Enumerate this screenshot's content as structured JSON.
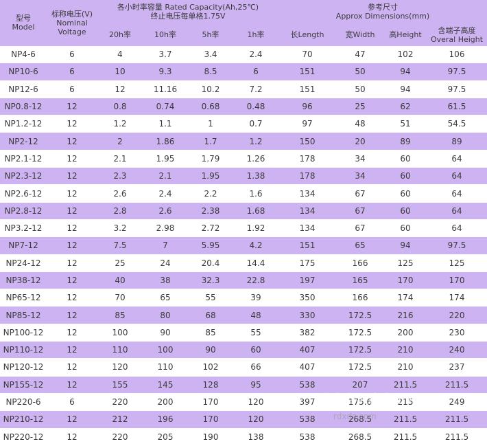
{
  "header": {
    "model_cn": "型号",
    "model_en": "Model",
    "voltage_cn": "标称电压(V)",
    "voltage_en_1": "Nominal",
    "voltage_en_2": "Voltage",
    "capacity_title_1": "各小时率容量 Rated Capacity(Ah,25℃)",
    "capacity_title_2": "终止电压每单格1.75V",
    "rate_20h": "20h率",
    "rate_10h": "10h率",
    "rate_5h": "5h率",
    "rate_1h": "1h率",
    "dims_cn": "参考尺寸",
    "dims_en": "Approx Dimensions(mm)",
    "length": "长Length",
    "width": "宽Width",
    "height": "高Height",
    "overall_cn": "含端子高度",
    "overall_en": "Overal Height"
  },
  "rows": [
    [
      "NP4-6",
      "6",
      "4",
      "3.7",
      "3.4",
      "2.4",
      "70",
      "47",
      "102",
      "106"
    ],
    [
      "NP10-6",
      "6",
      "10",
      "9.3",
      "8.5",
      "6",
      "151",
      "50",
      "94",
      "97.5"
    ],
    [
      "NP12-6",
      "6",
      "12",
      "11.16",
      "10.2",
      "7.2",
      "151",
      "50",
      "94",
      "97.5"
    ],
    [
      "NP0.8-12",
      "12",
      "0.8",
      "0.74",
      "0.68",
      "0.48",
      "96",
      "25",
      "62",
      "61.5"
    ],
    [
      "NP1.2-12",
      "12",
      "1.2",
      "1.1",
      "1",
      "0.7",
      "97",
      "48",
      "51",
      "54.5"
    ],
    [
      "NP2-12",
      "12",
      "2",
      "1.86",
      "1.7",
      "1.2",
      "150",
      "20",
      "89",
      "89"
    ],
    [
      "NP2.1-12",
      "12",
      "2.1",
      "1.95",
      "1.79",
      "1.26",
      "178",
      "34",
      "60",
      "64"
    ],
    [
      "NP2.3-12",
      "12",
      "2.3",
      "2.1",
      "1.95",
      "1.38",
      "178",
      "34",
      "60",
      "64"
    ],
    [
      "NP2.6-12",
      "12",
      "2.6",
      "2.4",
      "2.2",
      "1.6",
      "134",
      "67",
      "60",
      "64"
    ],
    [
      "NP2.8-12",
      "12",
      "2.8",
      "2.6",
      "2.38",
      "1.68",
      "134",
      "67",
      "60",
      "64"
    ],
    [
      "NP3.2-12",
      "12",
      "3.2",
      "2.98",
      "2.72",
      "1.92",
      "134",
      "67",
      "60",
      "64"
    ],
    [
      "NP7-12",
      "12",
      "7.5",
      "7",
      "5.95",
      "4.2",
      "151",
      "65",
      "94",
      "97.5"
    ],
    [
      "NP24-12",
      "12",
      "25",
      "24",
      "20.4",
      "14.4",
      "175",
      "166",
      "125",
      "125"
    ],
    [
      "NP38-12",
      "12",
      "40",
      "38",
      "32.3",
      "22.8",
      "197",
      "165",
      "170",
      "170"
    ],
    [
      "NP65-12",
      "12",
      "70",
      "65",
      "55",
      "39",
      "350",
      "166",
      "174",
      "174"
    ],
    [
      "NP85-12",
      "12",
      "85",
      "80",
      "68",
      "48",
      "330",
      "172.5",
      "216",
      "220"
    ],
    [
      "NP100-12",
      "12",
      "100",
      "90",
      "85",
      "55",
      "382",
      "172.5",
      "200",
      "230"
    ],
    [
      "NP110-12",
      "12",
      "110",
      "100",
      "90",
      "60",
      "407",
      "172.5",
      "210",
      "240"
    ],
    [
      "NP120-12",
      "12",
      "120",
      "110",
      "102",
      "66",
      "407",
      "172.5",
      "210",
      "237"
    ],
    [
      "NP155-12",
      "12",
      "155",
      "145",
      "128",
      "95",
      "538",
      "207",
      "211.5",
      "211.5"
    ],
    [
      "NP220-6",
      "6",
      "220",
      "200",
      "170",
      "120",
      "397",
      "175.6",
      "215",
      "249"
    ],
    [
      "NP210-12",
      "12",
      "212",
      "196",
      "170",
      "120",
      "538",
      "268.5",
      "211.5",
      "211.5"
    ],
    [
      "NP220-12",
      "12",
      "220",
      "205",
      "190",
      "138",
      "538",
      "268.5",
      "211.5",
      "211.5"
    ]
  ],
  "watermark": "北京容鼎鑫电子7",
  "watermark_url": "rdxdz.com",
  "colors": {
    "stripe": "#cdb3f1",
    "background": "#ffffff",
    "text": "#3a3a3a"
  }
}
